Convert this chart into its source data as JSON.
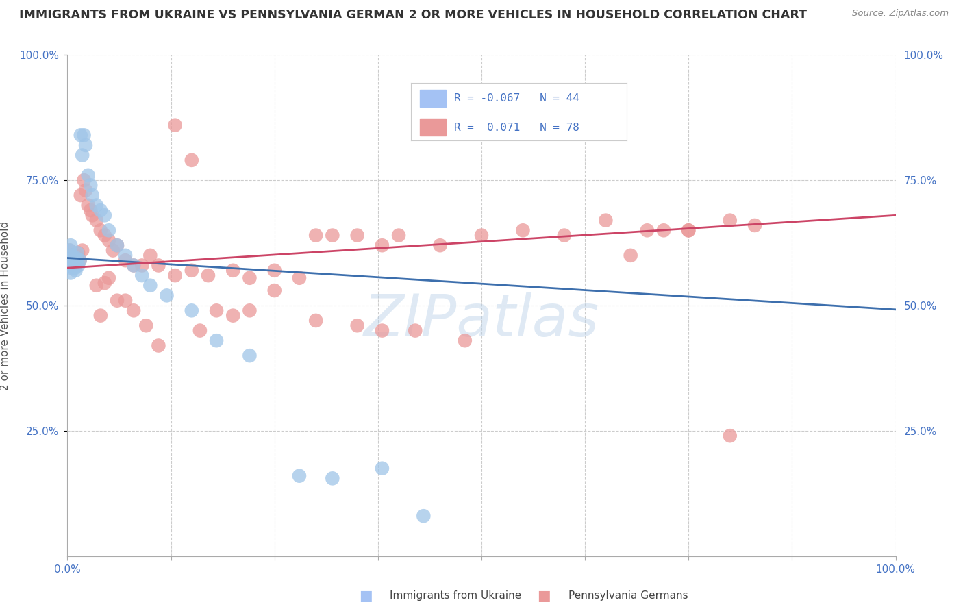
{
  "title": "IMMIGRANTS FROM UKRAINE VS PENNSYLVANIA GERMAN 2 OR MORE VEHICLES IN HOUSEHOLD CORRELATION CHART",
  "source": "Source: ZipAtlas.com",
  "ylabel": "2 or more Vehicles in Household",
  "xlim": [
    0.0,
    1.0
  ],
  "ylim": [
    0.0,
    1.0
  ],
  "ytick_positions": [
    0.25,
    0.5,
    0.75,
    1.0
  ],
  "xtick_positions": [
    0.0,
    0.125,
    0.25,
    0.375,
    0.5,
    0.625,
    0.75,
    0.875,
    1.0
  ],
  "watermark": "ZIPatlas",
  "color_blue": "#9fc5e8",
  "color_pink": "#ea9999",
  "color_blue_line": "#3d6fad",
  "color_pink_line": "#cc4466",
  "trendline_blue": [
    0.0,
    0.595,
    1.0,
    0.492
  ],
  "trendline_pink": [
    0.0,
    0.575,
    1.0,
    0.68
  ],
  "blue_points_x": [
    0.001,
    0.002,
    0.002,
    0.003,
    0.003,
    0.004,
    0.004,
    0.005,
    0.005,
    0.006,
    0.007,
    0.007,
    0.008,
    0.009,
    0.01,
    0.01,
    0.011,
    0.012,
    0.013,
    0.015,
    0.016,
    0.018,
    0.02,
    0.022,
    0.025,
    0.028,
    0.03,
    0.035,
    0.04,
    0.045,
    0.05,
    0.06,
    0.07,
    0.08,
    0.09,
    0.1,
    0.12,
    0.15,
    0.18,
    0.22,
    0.28,
    0.32,
    0.38,
    0.43
  ],
  "blue_points_y": [
    0.595,
    0.59,
    0.58,
    0.61,
    0.58,
    0.62,
    0.565,
    0.6,
    0.575,
    0.585,
    0.59,
    0.595,
    0.585,
    0.575,
    0.595,
    0.57,
    0.59,
    0.605,
    0.58,
    0.59,
    0.84,
    0.8,
    0.84,
    0.82,
    0.76,
    0.74,
    0.72,
    0.7,
    0.69,
    0.68,
    0.65,
    0.62,
    0.6,
    0.58,
    0.56,
    0.54,
    0.52,
    0.49,
    0.43,
    0.4,
    0.16,
    0.155,
    0.175,
    0.08
  ],
  "pink_points_x": [
    0.001,
    0.002,
    0.003,
    0.004,
    0.005,
    0.006,
    0.007,
    0.008,
    0.009,
    0.01,
    0.011,
    0.012,
    0.013,
    0.015,
    0.016,
    0.018,
    0.02,
    0.022,
    0.025,
    0.028,
    0.03,
    0.035,
    0.04,
    0.045,
    0.05,
    0.055,
    0.06,
    0.07,
    0.08,
    0.09,
    0.1,
    0.11,
    0.13,
    0.15,
    0.17,
    0.2,
    0.22,
    0.25,
    0.28,
    0.3,
    0.32,
    0.35,
    0.38,
    0.4,
    0.45,
    0.5,
    0.55,
    0.6,
    0.65,
    0.68,
    0.7,
    0.72,
    0.75,
    0.8,
    0.22,
    0.25,
    0.16,
    0.75,
    0.8,
    0.83,
    0.2,
    0.18,
    0.3,
    0.35,
    0.38,
    0.42,
    0.48,
    0.15,
    0.13,
    0.11,
    0.095,
    0.08,
    0.07,
    0.06,
    0.05,
    0.045,
    0.04,
    0.035
  ],
  "pink_points_y": [
    0.595,
    0.59,
    0.61,
    0.595,
    0.6,
    0.585,
    0.6,
    0.59,
    0.595,
    0.585,
    0.6,
    0.595,
    0.605,
    0.59,
    0.72,
    0.61,
    0.75,
    0.73,
    0.7,
    0.69,
    0.68,
    0.67,
    0.65,
    0.64,
    0.63,
    0.61,
    0.62,
    0.59,
    0.58,
    0.58,
    0.6,
    0.58,
    0.56,
    0.57,
    0.56,
    0.57,
    0.555,
    0.57,
    0.555,
    0.64,
    0.64,
    0.64,
    0.62,
    0.64,
    0.62,
    0.64,
    0.65,
    0.64,
    0.67,
    0.6,
    0.65,
    0.65,
    0.65,
    0.67,
    0.49,
    0.53,
    0.45,
    0.65,
    0.24,
    0.66,
    0.48,
    0.49,
    0.47,
    0.46,
    0.45,
    0.45,
    0.43,
    0.79,
    0.86,
    0.42,
    0.46,
    0.49,
    0.51,
    0.51,
    0.555,
    0.545,
    0.48,
    0.54
  ]
}
